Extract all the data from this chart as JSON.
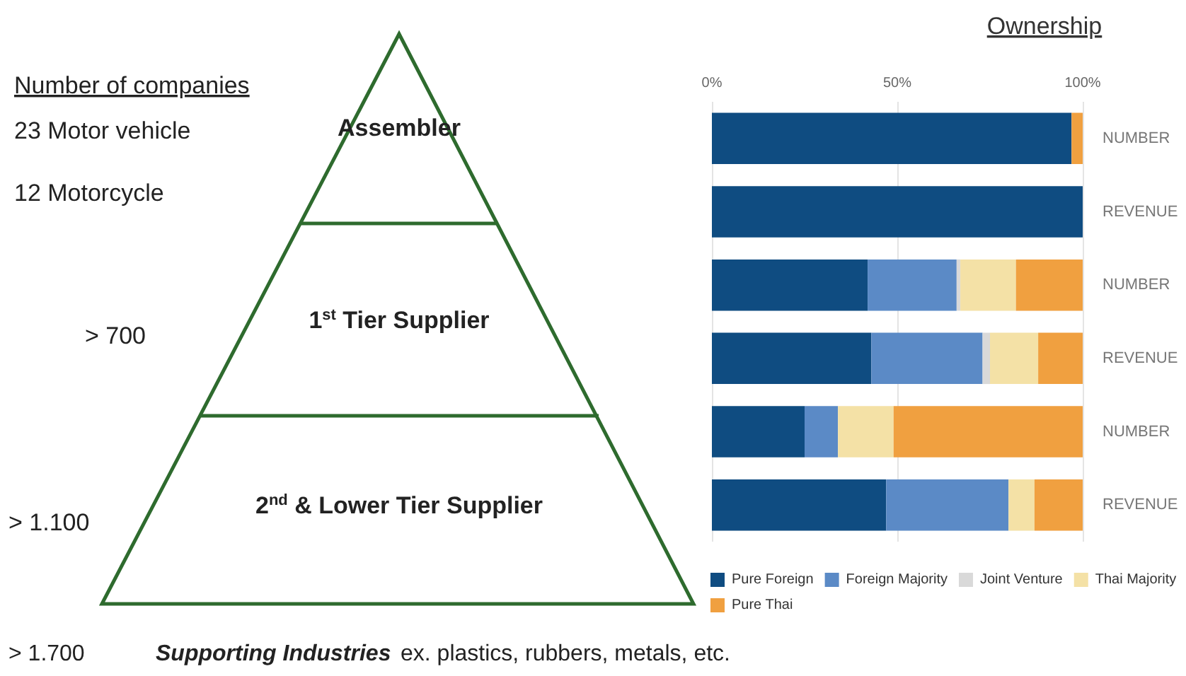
{
  "chart_data": {
    "type": "bar",
    "orientation": "horizontal",
    "stacked": true,
    "title": "Ownership",
    "categories": [
      "NUMBER",
      "REVENUE",
      "NUMBER",
      "REVENUE",
      "NUMBER",
      "REVENUE"
    ],
    "series": [
      {
        "name": "Pure Foreign",
        "color": "#0f4c81",
        "values": [
          97,
          100,
          42,
          43,
          25,
          47
        ]
      },
      {
        "name": "Foreign Majority",
        "color": "#5b8ac6",
        "values": [
          0,
          0,
          24,
          30,
          9,
          33
        ]
      },
      {
        "name": "Joint Venture",
        "color": "#d9d9d9",
        "values": [
          0,
          0,
          1,
          2,
          0,
          0
        ]
      },
      {
        "name": "Thai Majority",
        "color": "#f4e1a6",
        "values": [
          0,
          0,
          15,
          13,
          15,
          7
        ]
      },
      {
        "name": "Pure Thai",
        "color": "#f0a040",
        "values": [
          3,
          0,
          18,
          12,
          51,
          13
        ]
      }
    ],
    "xlim": [
      0,
      100
    ],
    "xticks": [
      {
        "value": 0,
        "label": "0%"
      },
      {
        "value": 50,
        "label": "50%"
      },
      {
        "value": 100,
        "label": "100%"
      }
    ],
    "grid": "x",
    "legend": "bottom",
    "annotations": [
      "Number of companies",
      "23 Motor vehicle",
      "12 Motorcycle",
      "Assembler",
      "> 700",
      "1$^{st}$ Tier Supplier",
      "> 1.100",
      "2$^{nd}$ & Lower Tier Supplier",
      "> 1.700",
      "Supporting Industries",
      "ex. plastics, rubbers, metals, etc."
    ]
  }
}
